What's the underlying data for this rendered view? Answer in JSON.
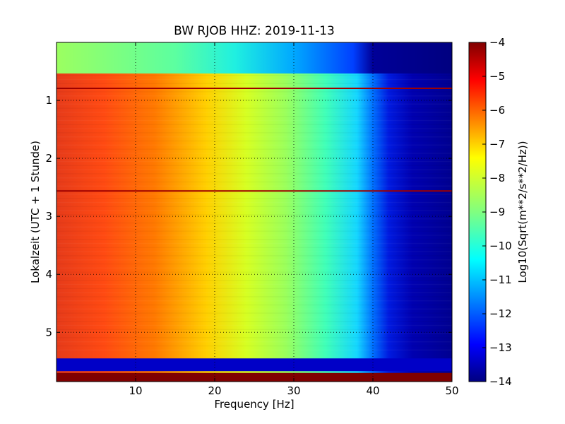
{
  "chart_data": {
    "type": "heatmap",
    "title": "BW RJOB HHZ: 2019-11-13",
    "xlabel": "Frequency [Hz]",
    "ylabel": "Lokalzeit (UTC + 1 Stunde)",
    "xlim": [
      0,
      50
    ],
    "ylim": [
      5.85,
      0
    ],
    "x_ticks": [
      10,
      20,
      30,
      40,
      50
    ],
    "y_ticks": [
      1,
      2,
      3,
      4,
      5
    ],
    "grid": true,
    "colorbar": {
      "label": "Log10(Sqrt(m**2/s**2/Hz))",
      "range": [
        -14,
        -4
      ],
      "ticks": [
        -4,
        -5,
        -6,
        -7,
        -8,
        -9,
        -10,
        -11,
        -12,
        -13,
        -14
      ],
      "colormap": "jet"
    },
    "psd_profile": {
      "frequency_hz": [
        0,
        3,
        8,
        12,
        16,
        20,
        25,
        30,
        35,
        38,
        40,
        42,
        45,
        50
      ],
      "log10_amplitude": [
        -5.8,
        -5.6,
        -6.0,
        -6.4,
        -7.0,
        -7.7,
        -8.3,
        -9.0,
        -9.6,
        -10.2,
        -11.2,
        -12.6,
        -13.2,
        -13.5
      ]
    },
    "events": [
      {
        "hour_range": [
          0.78,
          0.8
        ],
        "kind": "high",
        "level": -4.3
      },
      {
        "hour_range": [
          2.55,
          2.57
        ],
        "kind": "high",
        "level": -4.3
      },
      {
        "hour_range": [
          5.45,
          5.67
        ],
        "kind": "low",
        "level": -13.3
      },
      {
        "hour_range": [
          5.7,
          5.85
        ],
        "kind": "high",
        "level": -4.0
      }
    ]
  }
}
